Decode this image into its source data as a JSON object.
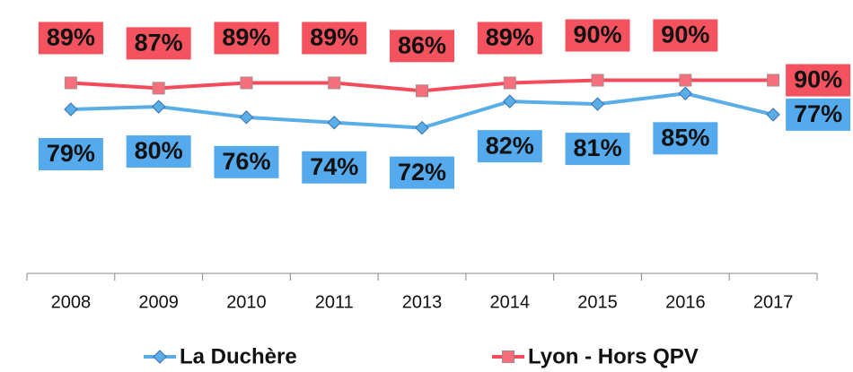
{
  "chart_data": {
    "type": "line",
    "categories": [
      "2008",
      "2009",
      "2010",
      "2011",
      "2013",
      "2014",
      "2015",
      "2016",
      "2017"
    ],
    "series": [
      {
        "name": "La Duchère",
        "color": "#5aaee8",
        "marker": "diamond",
        "values": [
          79,
          80,
          76,
          74,
          72,
          82,
          81,
          85,
          77
        ],
        "value_labels": [
          "79%",
          "80%",
          "76%",
          "74%",
          "72%",
          "82%",
          "81%",
          "85%",
          "77%"
        ]
      },
      {
        "name": "Lyon - Hors QPV",
        "color": "#f24b5b",
        "marker": "square",
        "values": [
          89,
          87,
          89,
          89,
          86,
          89,
          90,
          90,
          90
        ],
        "value_labels": [
          "89%",
          "87%",
          "89%",
          "89%",
          "86%",
          "89%",
          "90%",
          "90%",
          "90%"
        ]
      }
    ],
    "ylim": [
      17,
      100
    ],
    "legend": "bottom"
  }
}
